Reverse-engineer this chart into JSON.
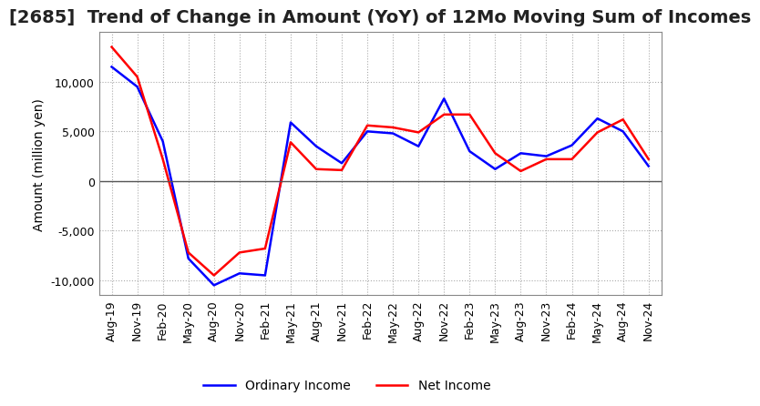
{
  "title": "[2685]  Trend of Change in Amount (YoY) of 12Mo Moving Sum of Incomes",
  "ylabel": "Amount (million yen)",
  "ylim": [
    -11500,
    15000
  ],
  "yticks": [
    -10000,
    -5000,
    0,
    5000,
    10000
  ],
  "x_labels": [
    "Aug-19",
    "Nov-19",
    "Feb-20",
    "May-20",
    "Aug-20",
    "Nov-20",
    "Feb-21",
    "May-21",
    "Aug-21",
    "Nov-21",
    "Feb-22",
    "May-22",
    "Aug-22",
    "Nov-22",
    "Feb-23",
    "May-23",
    "Aug-23",
    "Nov-23",
    "Feb-24",
    "May-24",
    "Aug-24",
    "Nov-24"
  ],
  "ordinary_income": [
    11500,
    9500,
    4000,
    -7800,
    -10500,
    -9300,
    -9500,
    5900,
    3500,
    1800,
    5000,
    4800,
    3500,
    8300,
    3000,
    1200,
    2800,
    2500,
    3600,
    6300,
    5000,
    1500
  ],
  "net_income": [
    13500,
    10500,
    2200,
    -7200,
    -9500,
    -7200,
    -6800,
    3900,
    1200,
    1100,
    5600,
    5400,
    4900,
    6700,
    6700,
    2800,
    1000,
    2200,
    2200,
    4900,
    6200,
    2200
  ],
  "ordinary_color": "#0000ff",
  "net_color": "#ff0000",
  "line_width": 1.8,
  "grid_color": "#aaaaaa",
  "zero_line_color": "#555555",
  "background_color": "#ffffff",
  "title_fontsize": 14,
  "label_fontsize": 10,
  "tick_fontsize": 9
}
